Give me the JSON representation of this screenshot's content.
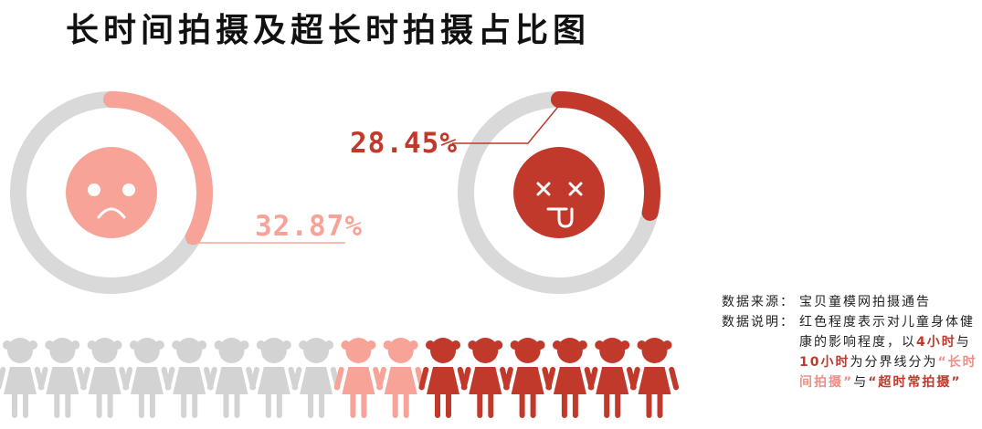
{
  "title": "长时间拍摄及超长时拍摄占比图",
  "colors": {
    "ring_track": "#d9d9d9",
    "long": "#f7a398",
    "ultra": "#c0392b",
    "neutral_figure": "#d3d3d3",
    "text": "#222222"
  },
  "chart_data": {
    "type": "pie",
    "charts": [
      {
        "label": "32.87%",
        "value": 32.87,
        "color": "#f7a398",
        "icon": "sad-face-icon"
      },
      {
        "label": "28.45%",
        "value": 28.45,
        "color": "#c0392b",
        "icon": "dizzy-face-icon"
      }
    ],
    "people_row": {
      "total": 16,
      "neutral": 8,
      "long": 2,
      "ultra": 6
    }
  },
  "source": {
    "label": "数据来源：",
    "text": "宝贝童模网拍摄通告"
  },
  "note": {
    "label": "数据说明：",
    "part1": "红色程度表示对儿童身体健康的影响程度，以",
    "hours_4": "4小时",
    "and": "与",
    "hours_10": "10小时",
    "part2": "为分界线分为",
    "term_long": "“长时间拍摄”",
    "and2": "与",
    "term_ultra": "“超时常拍摄”"
  }
}
